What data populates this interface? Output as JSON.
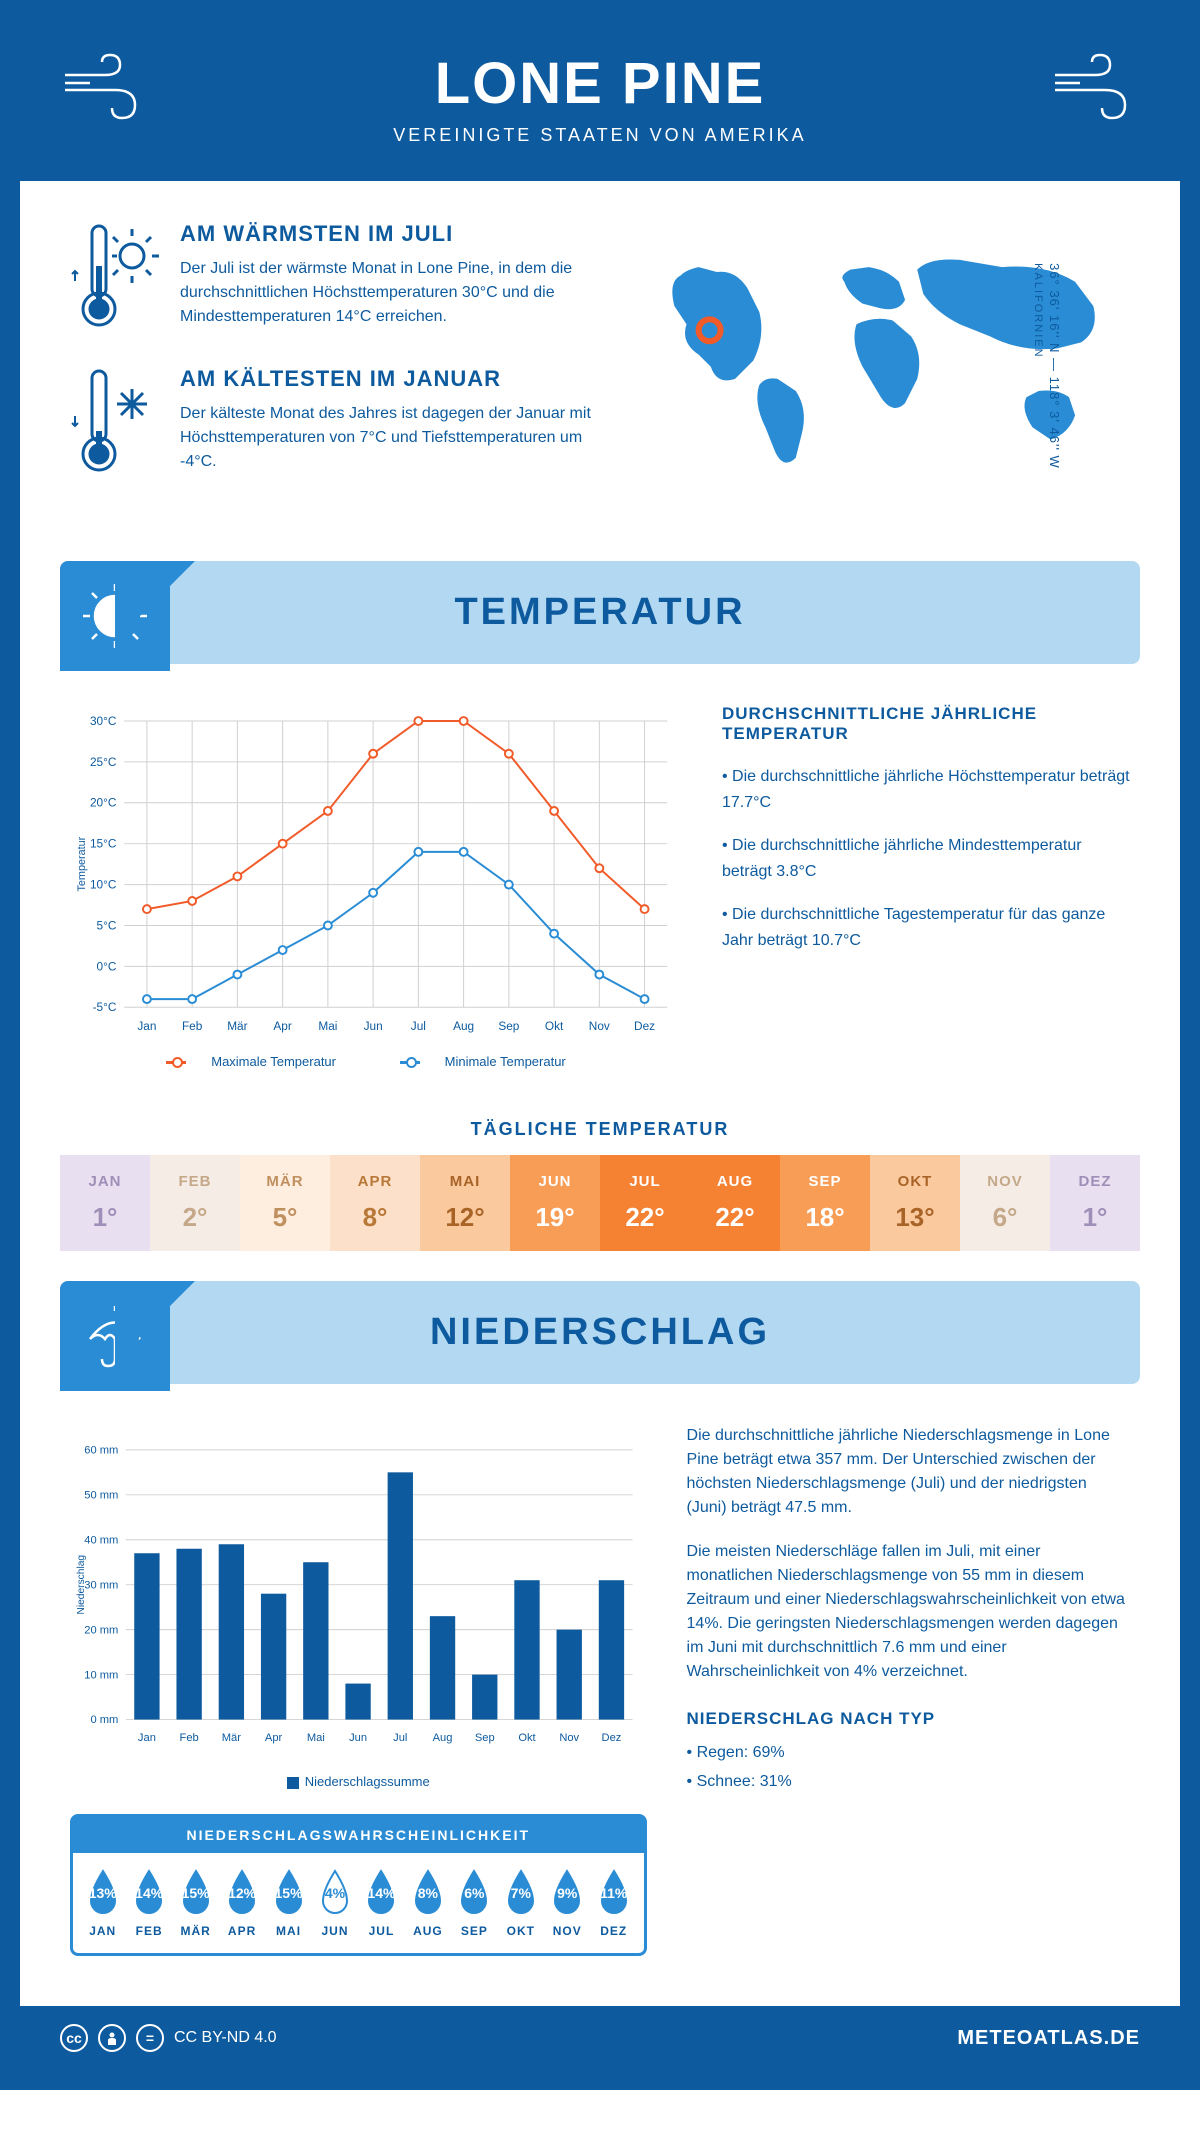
{
  "header": {
    "title": "LONE PINE",
    "subtitle": "VEREINIGTE STAATEN VON AMERIKA"
  },
  "intro": {
    "warmest": {
      "title": "AM WÄRMSTEN IM JULI",
      "text": "Der Juli ist der wärmste Monat in Lone Pine, in dem die durchschnittlichen Höchsttemperaturen 30°C und die Mindesttemperaturen 14°C erreichen."
    },
    "coldest": {
      "title": "AM KÄLTESTEN IM JANUAR",
      "text": "Der kälteste Monat des Jahres ist dagegen der Januar mit Höchsttemperaturen von 7°C und Tiefsttemperaturen um -4°C."
    },
    "coords": "36° 36' 16'' N — 118° 3' 46'' W",
    "state": "KALIFORNIEN"
  },
  "sections": {
    "temp_title": "TEMPERATUR",
    "precip_title": "NIEDERSCHLAG"
  },
  "temp_chart": {
    "type": "line",
    "y_title": "Temperatur",
    "months": [
      "Jan",
      "Feb",
      "Mär",
      "Apr",
      "Mai",
      "Jun",
      "Jul",
      "Aug",
      "Sep",
      "Okt",
      "Nov",
      "Dez"
    ],
    "max_label": "Maximale Temperatur",
    "min_label": "Minimale Temperatur",
    "max_values": [
      7,
      8,
      11,
      15,
      19,
      26,
      30,
      30,
      26,
      19,
      12,
      7
    ],
    "min_values": [
      -4,
      -4,
      -1,
      2,
      5,
      9,
      14,
      14,
      10,
      4,
      -1,
      -4
    ],
    "max_color": "#f15a29",
    "min_color": "#2a8cd4",
    "ylim": [
      -5,
      30
    ],
    "ytick_step": 5,
    "grid_color": "#d0d0d0",
    "line_width": 2,
    "marker_radius": 4
  },
  "temp_text": {
    "title": "DURCHSCHNITTLICHE JÄHRLICHE TEMPERATUR",
    "p1": "• Die durchschnittliche jährliche Höchsttemperatur beträgt 17.7°C",
    "p2": "• Die durchschnittliche jährliche Mindesttemperatur beträgt 3.8°C",
    "p3": "• Die durchschnittliche Tagestemperatur für das ganze Jahr beträgt 10.7°C"
  },
  "daily": {
    "title": "TÄGLICHE TEMPERATUR",
    "months": [
      "JAN",
      "FEB",
      "MÄR",
      "APR",
      "MAI",
      "JUN",
      "JUL",
      "AUG",
      "SEP",
      "OKT",
      "NOV",
      "DEZ"
    ],
    "temps": [
      "1°",
      "2°",
      "5°",
      "8°",
      "12°",
      "19°",
      "22°",
      "22°",
      "18°",
      "13°",
      "6°",
      "1°"
    ],
    "bg_colors": [
      "#e8e0f0",
      "#f5ede5",
      "#fdeee0",
      "#fce0ca",
      "#fbc99e",
      "#f79d56",
      "#f58233",
      "#f58233",
      "#f79d56",
      "#fbc99e",
      "#f5ede5",
      "#e8e0f0"
    ],
    "text_colors": [
      "#9e8fb8",
      "#c4a889",
      "#c08f5e",
      "#b87838",
      "#a86427",
      "#ffffff",
      "#ffffff",
      "#ffffff",
      "#ffffff",
      "#a86427",
      "#c4a889",
      "#9e8fb8"
    ]
  },
  "precip_chart": {
    "type": "bar",
    "y_title": "Niederschlag",
    "legend": "Niederschlagssumme",
    "months": [
      "Jan",
      "Feb",
      "Mär",
      "Apr",
      "Mai",
      "Jun",
      "Jul",
      "Aug",
      "Sep",
      "Okt",
      "Nov",
      "Dez"
    ],
    "values": [
      37,
      38,
      39,
      28,
      35,
      8,
      55,
      23,
      10,
      31,
      20,
      31
    ],
    "bar_color": "#0d5a9e",
    "ylim": [
      0,
      60
    ],
    "ytick_step": 10,
    "grid_color": "#d0d0d0",
    "bar_width": 0.6
  },
  "precip_text": {
    "p1": "Die durchschnittliche jährliche Niederschlagsmenge in Lone Pine beträgt etwa 357 mm. Der Unterschied zwischen der höchsten Niederschlagsmenge (Juli) und der niedrigsten (Juni) beträgt 47.5 mm.",
    "p2": "Die meisten Niederschläge fallen im Juli, mit einer monatlichen Niederschlagsmenge von 55 mm in diesem Zeitraum und einer Niederschlagswahrscheinlichkeit von etwa 14%. Die geringsten Niederschlagsmengen werden dagegen im Juni mit durchschnittlich 7.6 mm und einer Wahrscheinlichkeit von 4% verzeichnet.",
    "type_title": "NIEDERSCHLAG NACH TYP",
    "rain": "• Regen: 69%",
    "snow": "• Schnee: 31%"
  },
  "prob": {
    "title": "NIEDERSCHLAGSWAHRSCHEINLICHKEIT",
    "months": [
      "JAN",
      "FEB",
      "MÄR",
      "APR",
      "MAI",
      "JUN",
      "JUL",
      "AUG",
      "SEP",
      "OKT",
      "NOV",
      "DEZ"
    ],
    "values": [
      "13%",
      "14%",
      "15%",
      "12%",
      "15%",
      "4%",
      "14%",
      "8%",
      "6%",
      "7%",
      "9%",
      "11%"
    ],
    "low_index": 5,
    "fill_color": "#2a8cd4",
    "empty_color": "#ffffff",
    "border_color": "#2a8cd4"
  },
  "footer": {
    "license": "CC BY-ND 4.0",
    "source": "METEOATLAS.DE"
  },
  "colors": {
    "primary": "#0d5a9e",
    "light_blue": "#b3d9f2",
    "mid_blue": "#2a8cd4"
  }
}
